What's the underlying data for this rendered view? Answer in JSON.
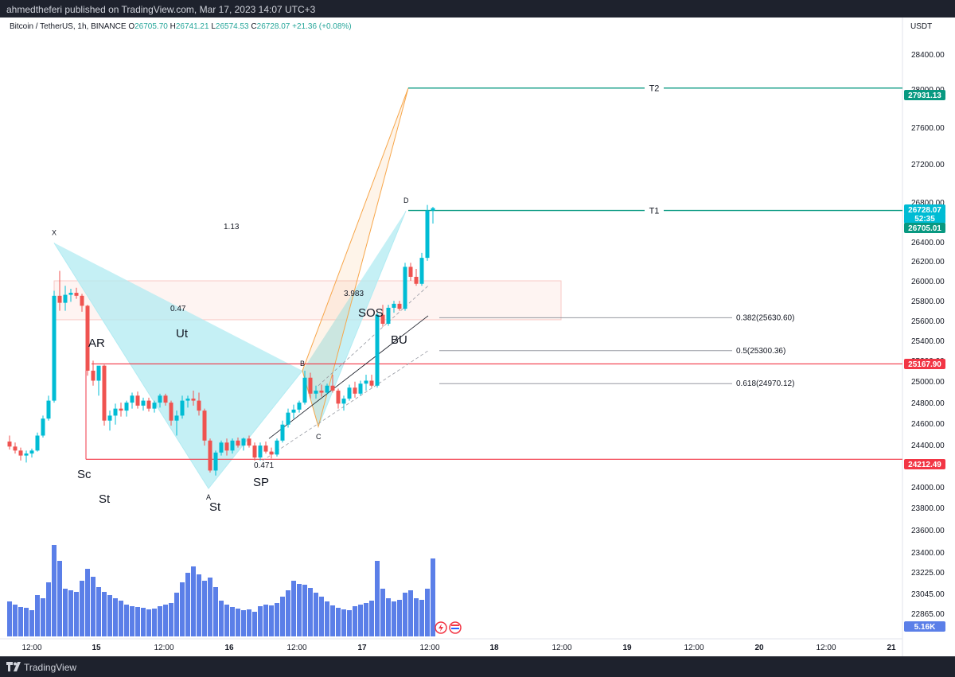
{
  "header": {
    "published": "ahmedtheferi published on TradingView.com, Mar 17, 2023 14:07 UTC+3"
  },
  "legend": {
    "symbol": "Bitcoin / TetherUS, 1h, BINANCE",
    "open_k": "O",
    "open": "26705.70",
    "high_k": "H",
    "high": "26741.21",
    "low_k": "L",
    "low": "26574.53",
    "close_k": "C",
    "close": "26728.07",
    "change": "+21.36 (+0.08%)"
  },
  "axis": {
    "currency": "USDT"
  },
  "footer": {
    "brand": "TradingView"
  },
  "colors": {
    "up": "#26a69a",
    "down": "#ef5350",
    "cyan_up": "#00bcd4",
    "teal": "#089981",
    "red_line": "#f23645",
    "volume": "#5b7fe8",
    "pattern_fill": "#b2ebf2",
    "orange": "#f7a64a"
  },
  "chart_data": {
    "type": "candlestick",
    "y_ticks": [
      "28400.00",
      "28000.00",
      "27600.00",
      "27200.00",
      "26800.00",
      "26400.00",
      "26200.00",
      "26000.00",
      "25800.00",
      "25600.00",
      "25400.00",
      "25200.00",
      "25000.00",
      "24800.00",
      "24600.00",
      "24400.00",
      "24200.00",
      "24000.00",
      "23800.00",
      "23600.00",
      "23400.00",
      "23225.00",
      "23045.00",
      "22865.00"
    ],
    "x_ticks": [
      "12:00",
      "15",
      "12:00",
      "16",
      "12:00",
      "17",
      "12:00",
      "18",
      "12:00",
      "19",
      "12:00",
      "20",
      "12:00",
      "21"
    ],
    "price_tags": [
      {
        "value": "27931.13",
        "color": "teal"
      },
      {
        "value": "26728.07",
        "color": "cyan_up"
      },
      {
        "value": "52:35",
        "color": "cyan_up"
      },
      {
        "value": "26705.01",
        "color": "teal"
      },
      {
        "value": "25167.90",
        "color": "red_line"
      },
      {
        "value": "24212.49",
        "color": "red_line"
      },
      {
        "value": "5.16K",
        "color": "volume"
      }
    ],
    "horizontal_lines": [
      {
        "price": 27931.13,
        "label": "T2",
        "color": "teal"
      },
      {
        "price": 26705.01,
        "label": "T1",
        "color": "teal"
      },
      {
        "price": 25167.9,
        "label": "",
        "color": "red_line"
      },
      {
        "price": 24212.49,
        "label": "",
        "color": "red_line"
      }
    ],
    "fib_levels": [
      {
        "price": 25630.6,
        "label": "0.382(25630.60)"
      },
      {
        "price": 25300.36,
        "label": "0.5(25300.36)"
      },
      {
        "price": 24970.12,
        "label": "0.618(24970.12)"
      }
    ],
    "harmonic": {
      "points": [
        {
          "name": "X",
          "price": 26380
        },
        {
          "name": "A",
          "price": 23920
        },
        {
          "name": "B",
          "price": 25100
        },
        {
          "name": "C",
          "price": 24540
        },
        {
          "name": "D",
          "price": 26700
        }
      ],
      "ratios": [
        "1.13",
        "0.47",
        "3.983",
        "0.471"
      ]
    },
    "wyckoff_labels": [
      "AR",
      "Ut",
      "Sc",
      "St",
      "St",
      "SP",
      "SOS",
      "BU"
    ],
    "supply_zone": {
      "from": 25610,
      "to": 26000
    },
    "candles": [
      [
        24390,
        24450,
        24310,
        24340
      ],
      [
        24340,
        24380,
        24270,
        24300
      ],
      [
        24300,
        24330,
        24200,
        24250
      ],
      [
        24250,
        24300,
        24180,
        24270
      ],
      [
        24270,
        24320,
        24230,
        24300
      ],
      [
        24300,
        24480,
        24290,
        24450
      ],
      [
        24450,
        24650,
        24430,
        24620
      ],
      [
        24620,
        24850,
        24600,
        24800
      ],
      [
        24800,
        25900,
        24780,
        25850
      ],
      [
        25850,
        26100,
        25700,
        25780
      ],
      [
        25780,
        25950,
        25700,
        25860
      ],
      [
        25860,
        25920,
        25790,
        25880
      ],
      [
        25880,
        25930,
        25820,
        25850
      ],
      [
        25850,
        25870,
        25690,
        25750
      ],
      [
        25750,
        25760,
        25050,
        25100
      ],
      [
        25100,
        25200,
        24950,
        25000
      ],
      [
        25000,
        25130,
        24850,
        25150
      ],
      [
        25150,
        25160,
        24550,
        24600
      ],
      [
        24600,
        24700,
        24500,
        24650
      ],
      [
        24650,
        24770,
        24560,
        24720
      ],
      [
        24720,
        24780,
        24640,
        24700
      ],
      [
        24700,
        24800,
        24640,
        24780
      ],
      [
        24780,
        24880,
        24720,
        24850
      ],
      [
        24850,
        24890,
        24720,
        24750
      ],
      [
        24750,
        24830,
        24700,
        24800
      ],
      [
        24800,
        24830,
        24690,
        24720
      ],
      [
        24720,
        24800,
        24680,
        24780
      ],
      [
        24780,
        24870,
        24730,
        24850
      ],
      [
        24850,
        24870,
        24750,
        24780
      ],
      [
        24780,
        24800,
        24550,
        24600
      ],
      [
        24600,
        24700,
        24450,
        24650
      ],
      [
        24650,
        24850,
        24620,
        24800
      ],
      [
        24800,
        24850,
        24730,
        24820
      ],
      [
        24820,
        24900,
        24750,
        24800
      ],
      [
        24800,
        24880,
        24650,
        24700
      ],
      [
        24700,
        24720,
        24350,
        24400
      ],
      [
        24400,
        24420,
        24080,
        24100
      ],
      [
        24100,
        24300,
        24050,
        24280
      ],
      [
        24280,
        24400,
        24250,
        24380
      ],
      [
        24380,
        24420,
        24250,
        24300
      ],
      [
        24300,
        24420,
        24270,
        24400
      ],
      [
        24400,
        24430,
        24330,
        24350
      ],
      [
        24350,
        24430,
        24300,
        24420
      ],
      [
        24420,
        24450,
        24330,
        24350
      ],
      [
        24350,
        24380,
        24200,
        24230
      ],
      [
        24230,
        24380,
        24200,
        24350
      ],
      [
        24350,
        24390,
        24270,
        24290
      ],
      [
        24290,
        24330,
        24220,
        24260
      ],
      [
        24260,
        24420,
        24240,
        24400
      ],
      [
        24400,
        24600,
        24380,
        24560
      ],
      [
        24560,
        24720,
        24530,
        24680
      ],
      [
        24680,
        24760,
        24620,
        24710
      ],
      [
        24710,
        24800,
        24680,
        24780
      ],
      [
        24780,
        25100,
        24760,
        25030
      ],
      [
        25030,
        25080,
        24820,
        24870
      ],
      [
        24870,
        24950,
        24820,
        24900
      ],
      [
        24900,
        24960,
        24840,
        24880
      ],
      [
        24880,
        24970,
        24860,
        24950
      ],
      [
        24950,
        25060,
        24880,
        24900
      ],
      [
        24900,
        24920,
        24720,
        24770
      ],
      [
        24770,
        24850,
        24700,
        24820
      ],
      [
        24820,
        24960,
        24800,
        24930
      ],
      [
        24930,
        24990,
        24830,
        24870
      ],
      [
        24870,
        25000,
        24850,
        24970
      ],
      [
        24970,
        25060,
        24900,
        25000
      ],
      [
        25000,
        25060,
        24930,
        24950
      ],
      [
        24950,
        25680,
        24930,
        25660
      ],
      [
        25660,
        25760,
        25540,
        25570
      ],
      [
        25570,
        25760,
        25550,
        25730
      ],
      [
        25730,
        25800,
        25680,
        25770
      ],
      [
        25770,
        25800,
        25700,
        25720
      ],
      [
        25720,
        26180,
        25700,
        26140
      ],
      [
        26140,
        26180,
        26000,
        26040
      ],
      [
        26040,
        26120,
        25950,
        25970
      ],
      [
        25970,
        26280,
        25950,
        26230
      ],
      [
        26230,
        26760,
        26200,
        26705
      ],
      [
        26705,
        26741,
        26574,
        26728
      ]
    ],
    "volumes": [
      44,
      40,
      37,
      36,
      33,
      52,
      48,
      68,
      115,
      95,
      60,
      58,
      56,
      70,
      85,
      75,
      62,
      56,
      52,
      48,
      45,
      40,
      38,
      37,
      36,
      34,
      35,
      38,
      40,
      42,
      55,
      68,
      80,
      88,
      78,
      70,
      74,
      62,
      45,
      40,
      37,
      35,
      33,
      34,
      31,
      38,
      40,
      39,
      42,
      50,
      58,
      70,
      66,
      65,
      61,
      55,
      50,
      44,
      39,
      36,
      34,
      33,
      38,
      40,
      42,
      45,
      95,
      60,
      48,
      44,
      46,
      55,
      58,
      48,
      46,
      60,
      98
    ]
  }
}
